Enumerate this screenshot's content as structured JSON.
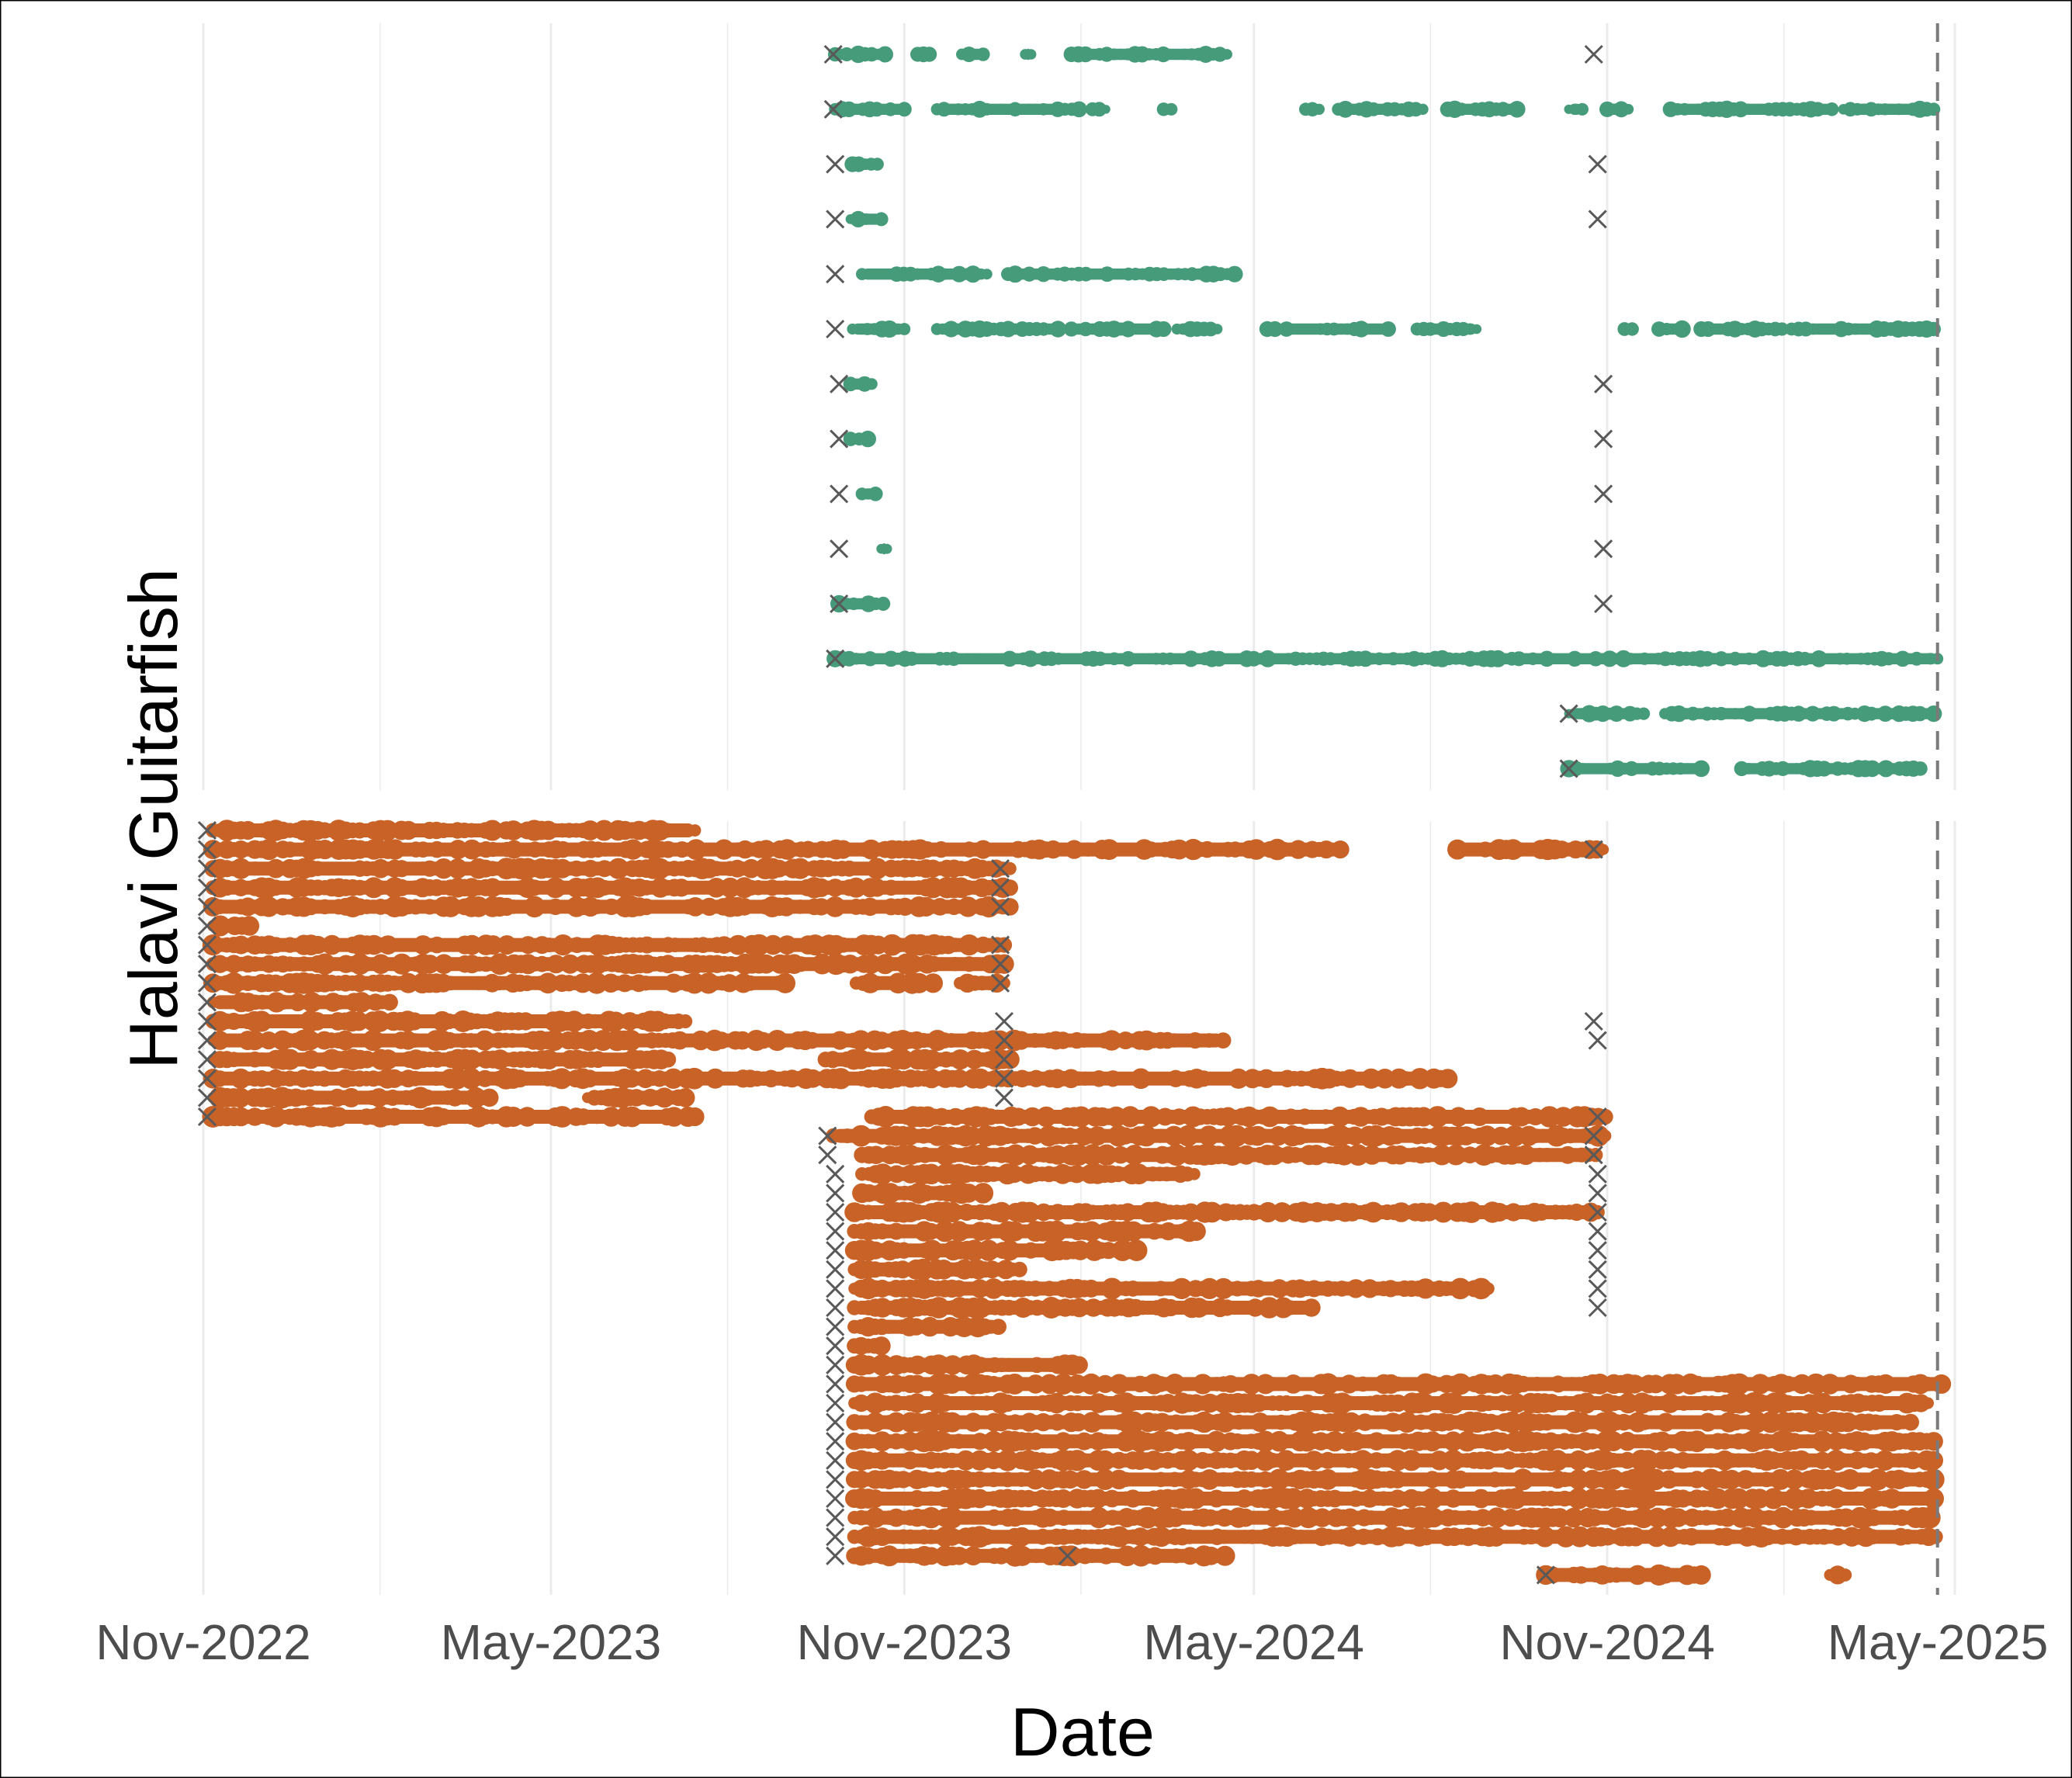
{
  "chart_data": {
    "type": "scatter",
    "title": "",
    "xlabel": "Date",
    "ylabel": "Halavi Guitarfish",
    "x_ticks": [
      "Nov-2022",
      "May-2023",
      "Nov-2023",
      "May-2024",
      "Nov-2024",
      "May-2025"
    ],
    "xlim": [
      "2022-11-01",
      "2025-05-01"
    ],
    "cutoff_date": "2025-04-22",
    "grid": "vertical",
    "legend": "none",
    "colors": {
      "panel_a": "#469C7A",
      "panel_b": "#C96226",
      "release_marker": "#595959",
      "cutoff_line": "#7a7a7a",
      "grid": "#ebebeb"
    },
    "panels": [
      {
        "id": "top",
        "series_color": "panel_a",
        "rows": [
          {
            "release": "2023-09-25",
            "segments": [
              [
                "2023-09-26",
                "2023-10-02"
              ],
              [
                "2023-10-08",
                "2023-10-22"
              ],
              [
                "2023-11-08",
                "2023-11-14"
              ],
              [
                "2023-12-01",
                "2023-12-12"
              ],
              [
                "2024-01-03",
                "2024-01-06"
              ],
              [
                "2024-01-27",
                "2024-04-17"
              ]
            ],
            "tag_dates": [
              "2024-10-25"
            ]
          },
          {
            "release": "2023-09-25",
            "segments": [
              [
                "2023-09-26",
                "2023-11-01"
              ],
              [
                "2023-11-18",
                "2024-01-31"
              ],
              [
                "2024-02-07",
                "2024-02-14"
              ],
              [
                "2024-03-15",
                "2024-03-19"
              ],
              [
                "2024-05-28",
                "2024-06-04"
              ],
              [
                "2024-06-14",
                "2024-07-28"
              ],
              [
                "2024-08-10",
                "2024-09-15"
              ],
              [
                "2024-10-12",
                "2024-10-19"
              ],
              [
                "2024-11-01",
                "2024-11-12"
              ],
              [
                "2024-12-04",
                "2025-02-26"
              ],
              [
                "2025-03-04",
                "2025-04-20"
              ]
            ]
          },
          {
            "release": "2023-09-26",
            "segments": [
              [
                "2023-10-05",
                "2023-10-18"
              ]
            ],
            "tag_dates": [
              "2024-10-27"
            ]
          },
          {
            "release": "2023-09-26",
            "segments": [
              [
                "2023-10-04",
                "2023-10-20"
              ]
            ],
            "tag_dates": [
              "2024-10-27"
            ]
          },
          {
            "release": "2023-09-26",
            "segments": [
              [
                "2023-10-10",
                "2023-12-14"
              ],
              [
                "2023-12-25",
                "2024-04-21"
              ]
            ]
          },
          {
            "release": "2023-09-26",
            "segments": [
              [
                "2023-10-05",
                "2023-11-01"
              ],
              [
                "2023-11-18",
                "2024-01-20"
              ],
              [
                "2024-01-27",
                "2024-03-15"
              ],
              [
                "2024-03-22",
                "2024-04-12"
              ],
              [
                "2024-05-08",
                "2024-05-12"
              ],
              [
                "2024-05-18",
                "2024-07-10"
              ],
              [
                "2024-07-25",
                "2024-08-25"
              ],
              [
                "2024-11-10",
                "2024-11-14"
              ],
              [
                "2024-11-28",
                "2024-12-10"
              ],
              [
                "2024-12-20",
                "2025-01-31"
              ],
              [
                "2025-02-05",
                "2025-04-20"
              ]
            ]
          },
          {
            "release": "2023-09-28",
            "segments": [
              [
                "2023-10-04",
                "2023-10-15"
              ]
            ],
            "tag_dates": [
              "2024-10-30"
            ]
          },
          {
            "release": "2023-09-28",
            "segments": [
              [
                "2023-10-04",
                "2023-10-13"
              ]
            ],
            "tag_dates": [
              "2024-10-30"
            ]
          },
          {
            "release": "2023-09-28",
            "segments": [
              [
                "2023-10-10",
                "2023-10-17"
              ]
            ],
            "tag_dates": [
              "2024-10-30"
            ]
          },
          {
            "release": "2023-09-28",
            "segments": [
              [
                "2023-10-20",
                "2023-10-23"
              ]
            ],
            "tag_dates": [
              "2024-10-30"
            ]
          },
          {
            "release": "2023-09-28",
            "segments": [
              [
                "2023-09-28",
                "2023-10-21"
              ]
            ],
            "tag_dates": [
              "2024-10-30"
            ]
          },
          {
            "release": "2023-09-26",
            "segments": [
              [
                "2023-09-26",
                "2025-04-22"
              ]
            ]
          },
          {
            "release": "2024-10-12",
            "segments": [
              [
                "2024-10-12",
                "2024-11-20"
              ],
              [
                "2024-12-01",
                "2025-03-10"
              ],
              [
                "2025-03-15",
                "2025-04-20"
              ]
            ]
          },
          {
            "release": "2024-10-12",
            "segments": [
              [
                "2024-10-12",
                "2024-12-20"
              ],
              [
                "2025-01-10",
                "2025-04-13"
              ]
            ]
          }
        ]
      },
      {
        "id": "bottom",
        "series_color": "panel_b",
        "rows": [
          {
            "release": "2022-11-03",
            "segments": [
              [
                "2022-11-06",
                "2023-07-15"
              ]
            ]
          },
          {
            "release": "2022-11-03",
            "segments": [
              [
                "2022-11-06",
                "2024-06-15"
              ],
              [
                "2024-08-15",
                "2024-10-30"
              ]
            ],
            "tag_dates": [
              "2024-10-25"
            ]
          },
          {
            "release": "2022-11-03",
            "segments": [
              [
                "2022-11-06",
                "2023-12-26"
              ]
            ],
            "tag_dates": [
              "2023-12-21"
            ]
          },
          {
            "release": "2022-11-03",
            "segments": [
              [
                "2022-11-06",
                "2023-12-26"
              ]
            ],
            "tag_dates": [
              "2023-12-21"
            ]
          },
          {
            "release": "2022-11-03",
            "segments": [
              [
                "2022-11-06",
                "2023-12-26"
              ]
            ],
            "tag_dates": [
              "2023-12-21"
            ]
          },
          {
            "release": "2022-11-03",
            "segments": [
              [
                "2022-11-06",
                "2022-11-25"
              ]
            ]
          },
          {
            "release": "2022-11-03",
            "segments": [
              [
                "2022-11-06",
                "2023-12-23"
              ]
            ],
            "tag_dates": [
              "2023-12-21"
            ]
          },
          {
            "release": "2022-11-03",
            "segments": [
              [
                "2022-11-06",
                "2023-12-23"
              ]
            ],
            "tag_dates": [
              "2023-12-21"
            ]
          },
          {
            "release": "2022-11-03",
            "segments": [
              [
                "2022-11-06",
                "2023-08-31"
              ],
              [
                "2023-10-07",
                "2023-11-16"
              ],
              [
                "2023-11-30",
                "2023-12-23"
              ]
            ],
            "tag_dates": [
              "2023-12-21"
            ]
          },
          {
            "release": "2022-11-03",
            "segments": [
              [
                "2022-11-06",
                "2023-02-06"
              ]
            ]
          },
          {
            "release": "2022-11-03",
            "segments": [
              [
                "2022-11-06",
                "2023-07-10"
              ]
            ],
            "tag_dates": [
              "2023-12-23",
              "2024-10-25"
            ]
          },
          {
            "release": "2022-11-03",
            "segments": [
              [
                "2022-11-06",
                "2024-04-15"
              ]
            ],
            "tag_dates": [
              "2023-12-23",
              "2024-10-27"
            ]
          },
          {
            "release": "2022-11-03",
            "segments": [
              [
                "2022-11-06",
                "2023-07-01"
              ],
              [
                "2023-09-21",
                "2023-12-26"
              ]
            ],
            "tag_dates": [
              "2023-12-23"
            ]
          },
          {
            "release": "2022-11-03",
            "segments": [
              [
                "2022-11-06",
                "2024-08-10"
              ]
            ],
            "tag_dates": [
              "2023-12-23"
            ]
          },
          {
            "release": "2022-11-03",
            "segments": [
              [
                "2022-11-06",
                "2023-03-30"
              ],
              [
                "2023-05-20",
                "2023-07-10"
              ]
            ],
            "tag_dates": [
              "2023-12-23"
            ]
          },
          {
            "release": "2022-11-03",
            "segments": [
              [
                "2022-11-06",
                "2023-07-15"
              ],
              [
                "2023-10-15",
                "2024-10-31"
              ]
            ],
            "tag_dates": [
              "2024-10-27"
            ]
          },
          {
            "release": "2023-09-22",
            "segments": [
              [
                "2023-09-25",
                "2024-10-31"
              ]
            ],
            "tag_dates": [
              "2024-10-25"
            ]
          },
          {
            "release": "2023-09-22",
            "segments": [
              [
                "2023-10-10",
                "2024-10-26"
              ]
            ],
            "tag_dates": [
              "2024-10-25"
            ]
          },
          {
            "release": "2023-09-26",
            "segments": [
              [
                "2023-10-10",
                "2024-03-31"
              ]
            ],
            "tag_dates": [
              "2024-10-27"
            ]
          },
          {
            "release": "2023-09-26",
            "segments": [
              [
                "2023-10-10",
                "2023-12-12"
              ]
            ],
            "tag_dates": [
              "2024-10-27"
            ]
          },
          {
            "release": "2023-09-26",
            "segments": [
              [
                "2023-10-06",
                "2024-10-27"
              ]
            ],
            "tag_dates": [
              "2024-10-27"
            ]
          },
          {
            "release": "2023-09-26",
            "segments": [
              [
                "2023-10-06",
                "2024-04-01"
              ]
            ],
            "tag_dates": [
              "2024-10-27"
            ]
          },
          {
            "release": "2023-09-26",
            "segments": [
              [
                "2023-10-06",
                "2024-03-01"
              ]
            ],
            "tag_dates": [
              "2024-10-27"
            ]
          },
          {
            "release": "2023-09-26",
            "segments": [
              [
                "2023-10-06",
                "2023-12-31"
              ]
            ],
            "tag_dates": [
              "2024-10-27"
            ]
          },
          {
            "release": "2023-09-26",
            "segments": [
              [
                "2023-10-06",
                "2024-08-31"
              ]
            ],
            "tag_dates": [
              "2024-10-27"
            ]
          },
          {
            "release": "2023-09-26",
            "segments": [
              [
                "2023-10-06",
                "2024-05-31"
              ]
            ],
            "tag_dates": [
              "2024-10-27"
            ]
          },
          {
            "release": "2023-09-26",
            "segments": [
              [
                "2023-10-06",
                "2023-12-20"
              ]
            ]
          },
          {
            "release": "2023-09-26",
            "segments": [
              [
                "2023-10-06",
                "2023-10-20"
              ]
            ]
          },
          {
            "release": "2023-09-26",
            "segments": [
              [
                "2023-10-06",
                "2024-01-31"
              ]
            ]
          },
          {
            "release": "2023-09-26",
            "segments": [
              [
                "2023-10-06",
                "2025-04-24"
              ]
            ]
          },
          {
            "release": "2023-09-26",
            "segments": [
              [
                "2023-10-06",
                "2025-04-17"
              ]
            ]
          },
          {
            "release": "2023-09-26",
            "segments": [
              [
                "2023-10-06",
                "2025-04-08"
              ]
            ]
          },
          {
            "release": "2023-09-26",
            "segments": [
              [
                "2023-10-06",
                "2025-04-20"
              ]
            ]
          },
          {
            "release": "2023-09-26",
            "segments": [
              [
                "2023-10-06",
                "2025-04-20"
              ]
            ]
          },
          {
            "release": "2023-09-26",
            "segments": [
              [
                "2023-10-06",
                "2025-04-20"
              ]
            ]
          },
          {
            "release": "2023-09-26",
            "segments": [
              [
                "2023-10-06",
                "2025-04-20"
              ]
            ]
          },
          {
            "release": "2023-09-26",
            "segments": [
              [
                "2023-10-06",
                "2025-04-18"
              ]
            ]
          },
          {
            "release": "2023-09-26",
            "segments": [
              [
                "2023-10-06",
                "2025-04-21"
              ]
            ]
          },
          {
            "release": "2023-09-26",
            "segments": [
              [
                "2023-10-06",
                "2024-04-16"
              ]
            ],
            "tag_dates": [
              "2024-01-25"
            ]
          },
          {
            "release": "2024-09-30",
            "segments": [
              [
                "2024-09-30",
                "2024-12-20"
              ],
              [
                "2025-02-25",
                "2025-03-05"
              ]
            ]
          }
        ]
      }
    ]
  }
}
